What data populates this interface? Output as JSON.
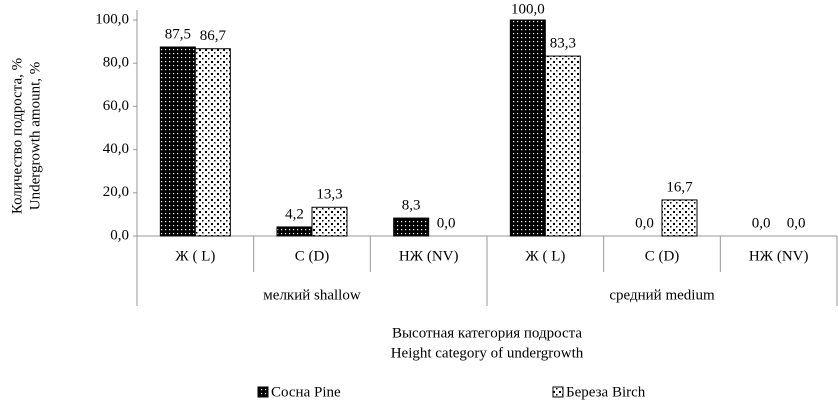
{
  "chart_data": {
    "type": "bar",
    "ylabel": [
      "Количество подроста, %",
      "Undergrowth amount, %"
    ],
    "xlabel": [
      "Высотная категория подроста",
      "Height category of undergrowth"
    ],
    "categories": [
      "Ж ( L)",
      "С (D)",
      "НЖ (NV)",
      "Ж ( L)",
      "С (D)",
      "НЖ (NV)"
    ],
    "groups": [
      "мелкий shallow",
      "средний medium"
    ],
    "series": [
      {
        "name": "Сосна Pine",
        "color": "#000000",
        "values": [
          87.5,
          4.2,
          8.3,
          100.0,
          0.0,
          0.0
        ],
        "value_labels": [
          "87,5",
          "4,2",
          "8,3",
          "100,0",
          "0,0",
          "0,0"
        ]
      },
      {
        "name": "Береза Birch",
        "color": "#ffffff",
        "values": [
          86.7,
          13.3,
          0.0,
          83.3,
          16.7,
          0.0
        ],
        "value_labels": [
          "86,7",
          "13,3",
          "0,0",
          "83,3",
          "16,7",
          "0,0"
        ]
      }
    ],
    "ylim": [
      0,
      100
    ],
    "yticks": [
      {
        "value": 0,
        "label": "0,0"
      },
      {
        "value": 20,
        "label": "20,0"
      },
      {
        "value": 40,
        "label": "40,0"
      },
      {
        "value": 60,
        "label": "60,0"
      },
      {
        "value": 80,
        "label": "80,0"
      },
      {
        "value": 100,
        "label": "100,0"
      }
    ],
    "legend": "bottom"
  }
}
